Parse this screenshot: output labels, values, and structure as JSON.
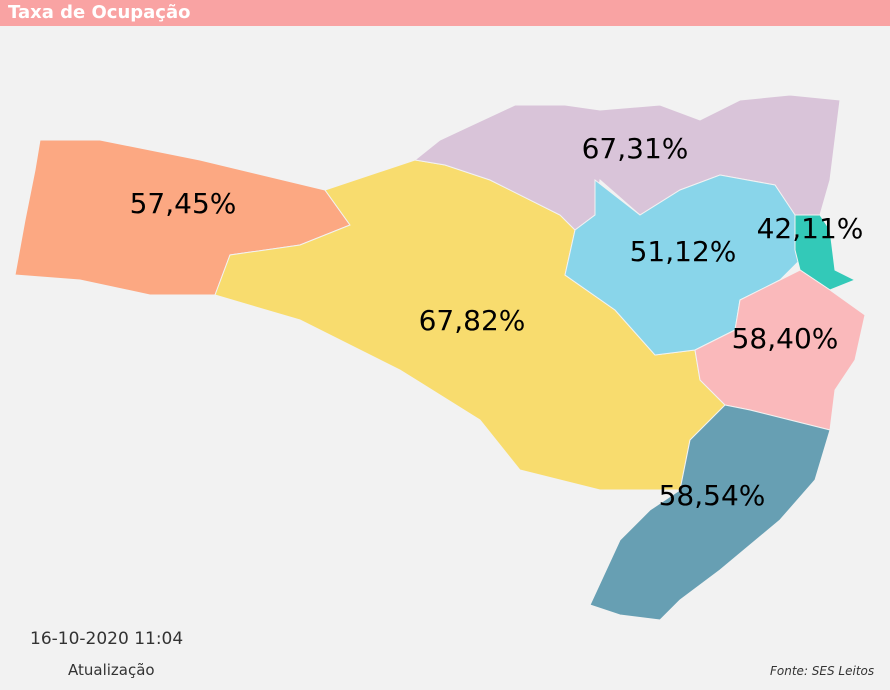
{
  "header": {
    "title": "Taxa de Ocupação"
  },
  "regions": [
    {
      "label": "57,45%",
      "color": "#fca882"
    },
    {
      "label": "67,82%",
      "color": "#f8dc6e"
    },
    {
      "label": "67,31%",
      "color": "#d9c4d9"
    },
    {
      "label": "51,12%",
      "color": "#89d5ea"
    },
    {
      "label": "42,11%",
      "color": "#33c9b8"
    },
    {
      "label": "58,40%",
      "color": "#fab9bb"
    },
    {
      "label": "58,54%",
      "color": "#679fb3"
    }
  ],
  "footer": {
    "timestamp": "16-10-2020 11:04",
    "caption": "Atualização",
    "source": "Fonte: SES Leitos"
  }
}
